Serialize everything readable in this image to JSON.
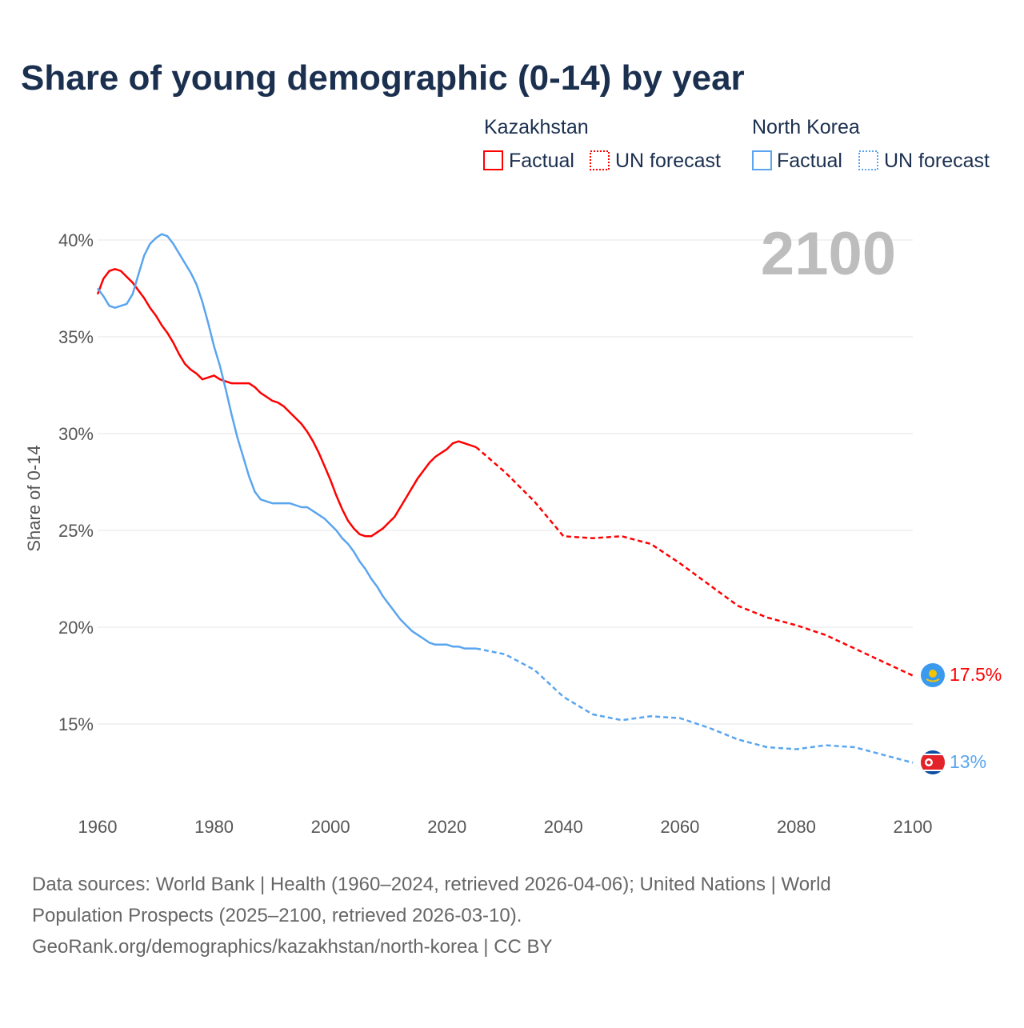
{
  "colors": {
    "kazakhstan": "#ff0000",
    "north_korea": "#5aa5ef",
    "title": "#1b2f4f",
    "year_watermark": "#bdbdbd"
  },
  "current_year_label": "2100",
  "legend": {
    "groups": [
      {
        "name": "Kazakhstan",
        "factual": "Factual",
        "forecast": "UN forecast"
      },
      {
        "name": "North Korea",
        "factual": "Factual",
        "forecast": "UN forecast"
      }
    ]
  },
  "end_labels": {
    "kazakhstan": "17.5%",
    "north_korea": "13%"
  },
  "footer": [
    "Data sources: World Bank | Health (1960–2024, retrieved 2026-04-06); United Nations | World",
    "Population Prospects (2025–2100, retrieved 2026-03-10).",
    "GeoRank.org/demographics/kazakhstan/north-korea | CC BY"
  ],
  "chart_data": {
    "type": "line",
    "title": "Share of young demographic (0-14) by year",
    "xlabel": "",
    "ylabel": "Share of 0-14",
    "xlim": [
      1960,
      2100
    ],
    "ylim": [
      10.6,
      40.4
    ],
    "xticks": [
      1960,
      1980,
      2000,
      2020,
      2040,
      2060,
      2080,
      2100
    ],
    "xtick_labels": [
      "1960",
      "1980",
      "2000",
      "2020",
      "2040",
      "2060",
      "2080",
      "2100"
    ],
    "yticks": [
      15,
      20,
      25,
      30,
      35,
      40
    ],
    "ytick_labels": [
      "15%",
      "20%",
      "25%",
      "30%",
      "35%",
      "40%"
    ],
    "grid": true,
    "legend_position": "top-right",
    "series": [
      {
        "name": "Kazakhstan",
        "kind": "factual",
        "color_key": "kazakhstan",
        "x": [
          1960,
          1961,
          1962,
          1963,
          1964,
          1965,
          1966,
          1967,
          1968,
          1969,
          1970,
          1971,
          1972,
          1973,
          1974,
          1975,
          1976,
          1977,
          1978,
          1979,
          1980,
          1981,
          1982,
          1983,
          1984,
          1985,
          1986,
          1987,
          1988,
          1989,
          1990,
          1991,
          1992,
          1993,
          1994,
          1995,
          1996,
          1997,
          1998,
          1999,
          2000,
          2001,
          2002,
          2003,
          2004,
          2005,
          2006,
          2007,
          2008,
          2009,
          2010,
          2011,
          2012,
          2013,
          2014,
          2015,
          2016,
          2017,
          2018,
          2019,
          2020,
          2021,
          2022,
          2023,
          2024,
          2025
        ],
        "y": [
          37.2,
          38.0,
          38.4,
          38.5,
          38.4,
          38.1,
          37.8,
          37.4,
          37.0,
          36.5,
          36.1,
          35.6,
          35.2,
          34.7,
          34.1,
          33.6,
          33.3,
          33.1,
          32.8,
          32.9,
          33.0,
          32.8,
          32.7,
          32.6,
          32.6,
          32.6,
          32.6,
          32.4,
          32.1,
          31.9,
          31.7,
          31.6,
          31.4,
          31.1,
          30.8,
          30.5,
          30.1,
          29.6,
          29.0,
          28.3,
          27.6,
          26.8,
          26.1,
          25.5,
          25.1,
          24.8,
          24.7,
          24.7,
          24.9,
          25.1,
          25.4,
          25.7,
          26.2,
          26.7,
          27.2,
          27.7,
          28.1,
          28.5,
          28.8,
          29.0,
          29.2,
          29.5,
          29.6,
          29.5,
          29.4,
          29.3
        ]
      },
      {
        "name": "Kazakhstan",
        "kind": "forecast",
        "color_key": "kazakhstan",
        "x": [
          2025,
          2030,
          2035,
          2040,
          2045,
          2050,
          2055,
          2060,
          2065,
          2070,
          2075,
          2080,
          2085,
          2090,
          2095,
          2100
        ],
        "y": [
          29.3,
          28.0,
          26.5,
          24.7,
          24.6,
          24.7,
          24.3,
          23.3,
          22.2,
          21.1,
          20.5,
          20.1,
          19.6,
          18.9,
          18.2,
          17.5
        ]
      },
      {
        "name": "North Korea",
        "kind": "factual",
        "color_key": "north_korea",
        "x": [
          1960,
          1961,
          1962,
          1963,
          1964,
          1965,
          1966,
          1967,
          1968,
          1969,
          1970,
          1971,
          1972,
          1973,
          1974,
          1975,
          1976,
          1977,
          1978,
          1979,
          1980,
          1981,
          1982,
          1983,
          1984,
          1985,
          1986,
          1987,
          1988,
          1989,
          1990,
          1991,
          1992,
          1993,
          1994,
          1995,
          1996,
          1997,
          1998,
          1999,
          2000,
          2001,
          2002,
          2003,
          2004,
          2005,
          2006,
          2007,
          2008,
          2009,
          2010,
          2011,
          2012,
          2013,
          2014,
          2015,
          2016,
          2017,
          2018,
          2019,
          2020,
          2021,
          2022,
          2023,
          2024,
          2025
        ],
        "y": [
          37.5,
          37.1,
          36.6,
          36.5,
          36.6,
          36.7,
          37.2,
          38.2,
          39.2,
          39.8,
          40.1,
          40.3,
          40.2,
          39.8,
          39.3,
          38.8,
          38.3,
          37.7,
          36.8,
          35.7,
          34.5,
          33.5,
          32.3,
          31.0,
          29.8,
          28.8,
          27.8,
          27.0,
          26.6,
          26.5,
          26.4,
          26.4,
          26.4,
          26.4,
          26.3,
          26.2,
          26.2,
          26.0,
          25.8,
          25.6,
          25.3,
          25.0,
          24.6,
          24.3,
          23.9,
          23.4,
          23.0,
          22.5,
          22.1,
          21.6,
          21.2,
          20.8,
          20.4,
          20.1,
          19.8,
          19.6,
          19.4,
          19.2,
          19.1,
          19.1,
          19.1,
          19.0,
          19.0,
          18.9,
          18.9,
          18.9
        ]
      },
      {
        "name": "North Korea",
        "kind": "forecast",
        "color_key": "north_korea",
        "x": [
          2025,
          2030,
          2035,
          2040,
          2045,
          2050,
          2055,
          2060,
          2065,
          2070,
          2075,
          2080,
          2085,
          2090,
          2095,
          2100
        ],
        "y": [
          18.9,
          18.6,
          17.8,
          16.4,
          15.5,
          15.2,
          15.4,
          15.3,
          14.8,
          14.2,
          13.8,
          13.7,
          13.9,
          13.8,
          13.4,
          13.0
        ]
      }
    ]
  }
}
